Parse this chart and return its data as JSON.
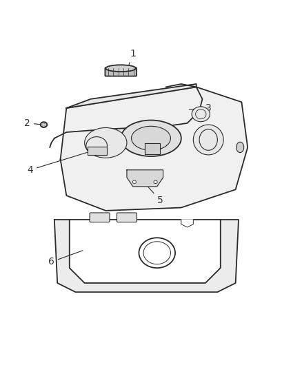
{
  "background_color": "#ffffff",
  "line_color": "#2a2a2a",
  "label_color": "#333333",
  "fig_width": 4.38,
  "fig_height": 5.33,
  "dpi": 100,
  "label_fontsize": 10
}
